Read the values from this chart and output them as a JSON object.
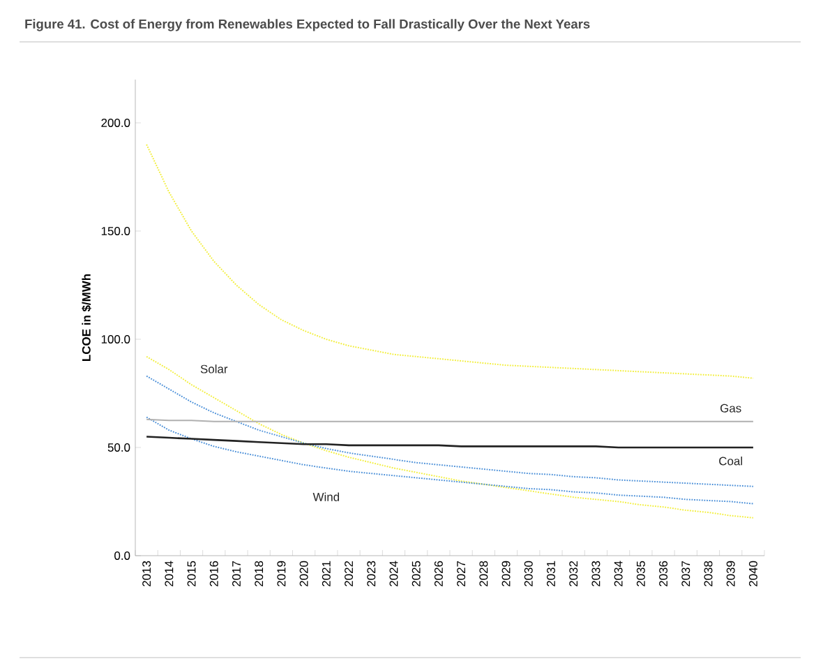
{
  "chart_data": {
    "type": "line",
    "title": "Figure 41. Cost of Energy from Renewables Expected to Fall Drastically Over the Next Years",
    "ylabel": "LCOE in $/MWh",
    "categories": [
      "2013",
      "2014",
      "2015",
      "2016",
      "2017",
      "2018",
      "2019",
      "2020",
      "2021",
      "2022",
      "2023",
      "2024",
      "2025",
      "2026",
      "2027",
      "2028",
      "2029",
      "2030",
      "2031",
      "2032",
      "2033",
      "2034",
      "2035",
      "2036",
      "2037",
      "2038",
      "2039",
      "2040"
    ],
    "ylim": [
      0,
      220
    ],
    "yticks": [
      {
        "value": 0,
        "label": "0.0"
      },
      {
        "value": 50,
        "label": "50.0"
      },
      {
        "value": 100,
        "label": "100.0"
      },
      {
        "value": 150,
        "label": "150.0"
      },
      {
        "value": 200,
        "label": "200.0"
      }
    ],
    "marker": "none",
    "grid": false,
    "series": [
      {
        "color": "#f2ee3a",
        "line_style": "dotted",
        "values": [
          190,
          168,
          150,
          136,
          125,
          116,
          109,
          104,
          100,
          97,
          95,
          93,
          92,
          91,
          90,
          89,
          88,
          87.5,
          87,
          86.5,
          86,
          85.5,
          85,
          84.5,
          84,
          83.5,
          83,
          82
        ]
      },
      {
        "name": "Solar",
        "color": "#f2ee3a",
        "line_style": "dotted",
        "values": [
          92,
          86,
          79,
          73,
          67,
          61,
          56,
          52,
          48.5,
          45.5,
          43,
          40.5,
          38.5,
          36.5,
          34.5,
          33,
          31.5,
          30,
          28.5,
          27,
          26,
          25,
          23.5,
          22.5,
          21,
          20,
          18.5,
          17.5
        ]
      },
      {
        "color": "#4a8fd8",
        "line_style": "dotted",
        "values": [
          83,
          77,
          71,
          66,
          62,
          58,
          55,
          52,
          49.5,
          47.5,
          46,
          44.5,
          43,
          42,
          41,
          40,
          39,
          38,
          37.5,
          36.5,
          36,
          35,
          34.5,
          34,
          33.5,
          33,
          32.5,
          32
        ]
      },
      {
        "name": "Wind",
        "color": "#4a8fd8",
        "line_style": "dotted",
        "values": [
          64,
          58,
          54,
          50.5,
          48,
          46,
          44,
          42,
          40.5,
          39,
          38,
          37,
          36,
          35,
          34,
          33,
          32,
          31,
          30.5,
          29.5,
          29,
          28,
          27.5,
          27,
          26,
          25.5,
          25,
          24
        ]
      },
      {
        "name": "Gas",
        "color": "#b0b0b0",
        "line_style": "solid",
        "values": [
          63,
          62.5,
          62.5,
          62,
          62,
          62,
          62,
          62,
          62,
          62,
          62,
          62,
          62,
          62,
          62,
          62,
          62,
          62,
          62,
          62,
          62,
          62,
          62,
          62,
          62,
          62,
          62,
          62
        ]
      },
      {
        "name": "Coal",
        "color": "#222222",
        "line_style": "solid",
        "values": [
          55,
          54.5,
          54,
          53.5,
          53,
          52.5,
          52,
          51.5,
          51.5,
          51,
          51,
          51,
          51,
          51,
          50.5,
          50.5,
          50.5,
          50.5,
          50.5,
          50.5,
          50.5,
          50,
          50,
          50,
          50,
          50,
          50,
          50
        ]
      }
    ]
  }
}
